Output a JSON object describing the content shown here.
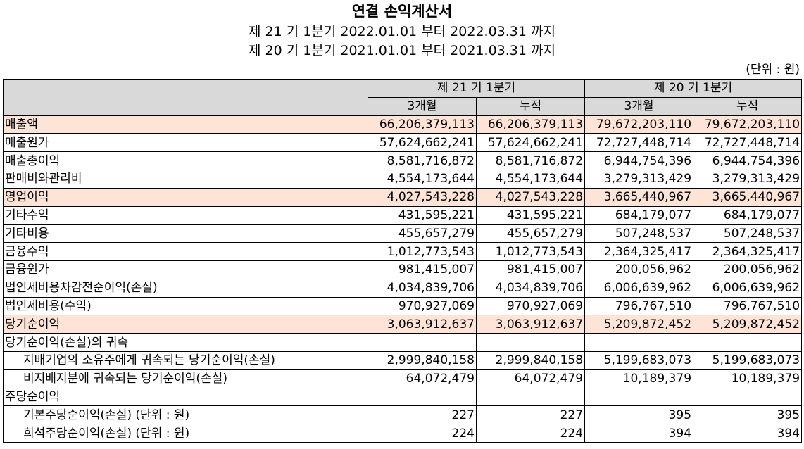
{
  "title": "연결 손익계산서",
  "period_current": "제 21 기 1분기 2022.01.01 부터 2022.03.31 까지",
  "period_prior": "제 20 기 1분기 2021.01.01 부터 2021.03.31 까지",
  "unit": "(단위 : 원)",
  "header": {
    "group_current": "제 21 기 1분기",
    "group_prior": "제 20 기 1분기",
    "col_3m_current": "3개월",
    "col_cum_current": "누적",
    "col_3m_prior": "3개월",
    "col_cum_prior": "누적"
  },
  "rows": [
    {
      "label": "매출액",
      "v": [
        "66,206,379,113",
        "66,206,379,113",
        "79,672,203,110",
        "79,672,203,110"
      ]
    },
    {
      "label": "매출원가",
      "v": [
        "57,624,662,241",
        "57,624,662,241",
        "72,727,448,714",
        "72,727,448,714"
      ]
    },
    {
      "label": "매출총이익",
      "v": [
        "8,581,716,872",
        "8,581,716,872",
        "6,944,754,396",
        "6,944,754,396"
      ]
    },
    {
      "label": "판매비와관리비",
      "v": [
        "4,554,173,644",
        "4,554,173,644",
        "3,279,313,429",
        "3,279,313,429"
      ]
    },
    {
      "label": "영업이익",
      "v": [
        "4,027,543,228",
        "4,027,543,228",
        "3,665,440,967",
        "3,665,440,967"
      ]
    },
    {
      "label": "기타수익",
      "v": [
        "431,595,221",
        "431,595,221",
        "684,179,077",
        "684,179,077"
      ]
    },
    {
      "label": "기타비용",
      "v": [
        "455,657,279",
        "455,657,279",
        "507,248,537",
        "507,248,537"
      ]
    },
    {
      "label": "금융수익",
      "v": [
        "1,012,773,543",
        "1,012,773,543",
        "2,364,325,417",
        "2,364,325,417"
      ]
    },
    {
      "label": "금융원가",
      "v": [
        "981,415,007",
        "981,415,007",
        "200,056,962",
        "200,056,962"
      ]
    },
    {
      "label": "법인세비용차감전순이익(손실)",
      "v": [
        "4,034,839,706",
        "4,034,839,706",
        "6,006,639,962",
        "6,006,639,962"
      ]
    },
    {
      "label": "법인세비용(수익)",
      "v": [
        "970,927,069",
        "970,927,069",
        "796,767,510",
        "796,767,510"
      ]
    },
    {
      "label": "당기순이익",
      "v": [
        "3,063,912,637",
        "3,063,912,637",
        "5,209,872,452",
        "5,209,872,452"
      ]
    },
    {
      "label": "당기순이익(손실)의 귀속",
      "v": [
        "",
        "",
        "",
        ""
      ]
    },
    {
      "label": "지배기업의 소유주에게 귀속되는 당기순이익(손실)",
      "v": [
        "2,999,840,158",
        "2,999,840,158",
        "5,199,683,073",
        "5,199,683,073"
      ]
    },
    {
      "label": "비지배지분에 귀속되는 당기순이익(손실)",
      "v": [
        "64,072,479",
        "64,072,479",
        "10,189,379",
        "10,189,379"
      ]
    },
    {
      "label": "주당순이익",
      "v": [
        "",
        "",
        "",
        ""
      ]
    },
    {
      "label": "기본주당순이익(손실) (단위 : 원)",
      "v": [
        "227",
        "227",
        "395",
        "395"
      ]
    },
    {
      "label": "희석주당순이익(손실) (단위 : 원)",
      "v": [
        "224",
        "224",
        "394",
        "394"
      ]
    }
  ]
}
